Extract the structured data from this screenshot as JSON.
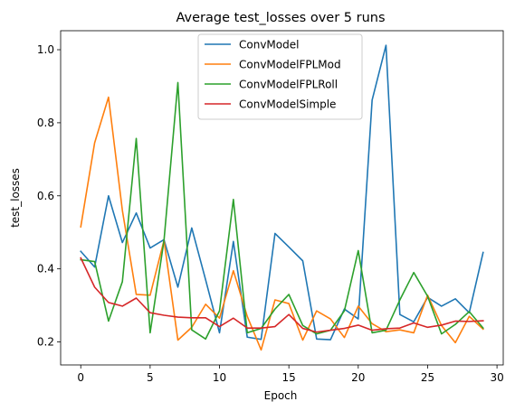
{
  "chart_data": {
    "type": "line",
    "title": "Average test_losses over 5 runs",
    "xlabel": "Epoch",
    "ylabel": "test_losses",
    "xlim": [
      -1.45,
      30.45
    ],
    "ylim": [
      0.137,
      1.052
    ],
    "xticks": [
      0,
      5,
      10,
      15,
      20,
      25,
      30
    ],
    "yticks": [
      0.2,
      0.4,
      0.6,
      0.8,
      1.0
    ],
    "ytick_labels": [
      "0.2",
      "0.4",
      "0.6",
      "0.8",
      "1.0"
    ],
    "grid": false,
    "legend_position": "top-center",
    "x": [
      0,
      1,
      2,
      3,
      4,
      5,
      6,
      7,
      8,
      9,
      10,
      11,
      12,
      13,
      14,
      15,
      16,
      17,
      18,
      19,
      20,
      21,
      22,
      23,
      24,
      25,
      26,
      27,
      28,
      29
    ],
    "series": [
      {
        "name": "ConvModel",
        "color": "#1f77b4",
        "values": [
          0.448,
          0.405,
          0.6,
          0.472,
          0.553,
          0.457,
          0.48,
          0.35,
          0.512,
          0.37,
          0.225,
          0.475,
          0.213,
          0.207,
          0.497,
          0.46,
          0.422,
          0.208,
          0.206,
          0.29,
          0.263,
          0.862,
          1.012,
          0.275,
          0.255,
          0.322,
          0.298,
          0.318,
          0.28,
          0.445
        ]
      },
      {
        "name": "ConvModelFPLMod",
        "color": "#ff7f0e",
        "values": [
          0.515,
          0.745,
          0.87,
          0.56,
          0.33,
          0.328,
          0.478,
          0.205,
          0.24,
          0.303,
          0.265,
          0.395,
          0.27,
          0.178,
          0.315,
          0.305,
          0.205,
          0.285,
          0.263,
          0.212,
          0.298,
          0.25,
          0.228,
          0.233,
          0.225,
          0.328,
          0.245,
          0.198,
          0.27,
          0.235
        ]
      },
      {
        "name": "ConvModelFPLRoll",
        "color": "#2ca02c",
        "values": [
          0.425,
          0.42,
          0.257,
          0.365,
          0.757,
          0.225,
          0.478,
          0.91,
          0.233,
          0.208,
          0.285,
          0.59,
          0.225,
          0.237,
          0.29,
          0.33,
          0.245,
          0.222,
          0.232,
          0.285,
          0.45,
          0.225,
          0.232,
          0.315,
          0.39,
          0.325,
          0.222,
          0.248,
          0.283,
          0.238
        ]
      },
      {
        "name": "ConvModelSimple",
        "color": "#d62728",
        "values": [
          0.43,
          0.35,
          0.308,
          0.298,
          0.32,
          0.28,
          0.273,
          0.268,
          0.266,
          0.266,
          0.242,
          0.265,
          0.238,
          0.238,
          0.242,
          0.275,
          0.237,
          0.227,
          0.232,
          0.237,
          0.246,
          0.232,
          0.236,
          0.238,
          0.252,
          0.24,
          0.246,
          0.257,
          0.256,
          0.258
        ]
      }
    ]
  }
}
